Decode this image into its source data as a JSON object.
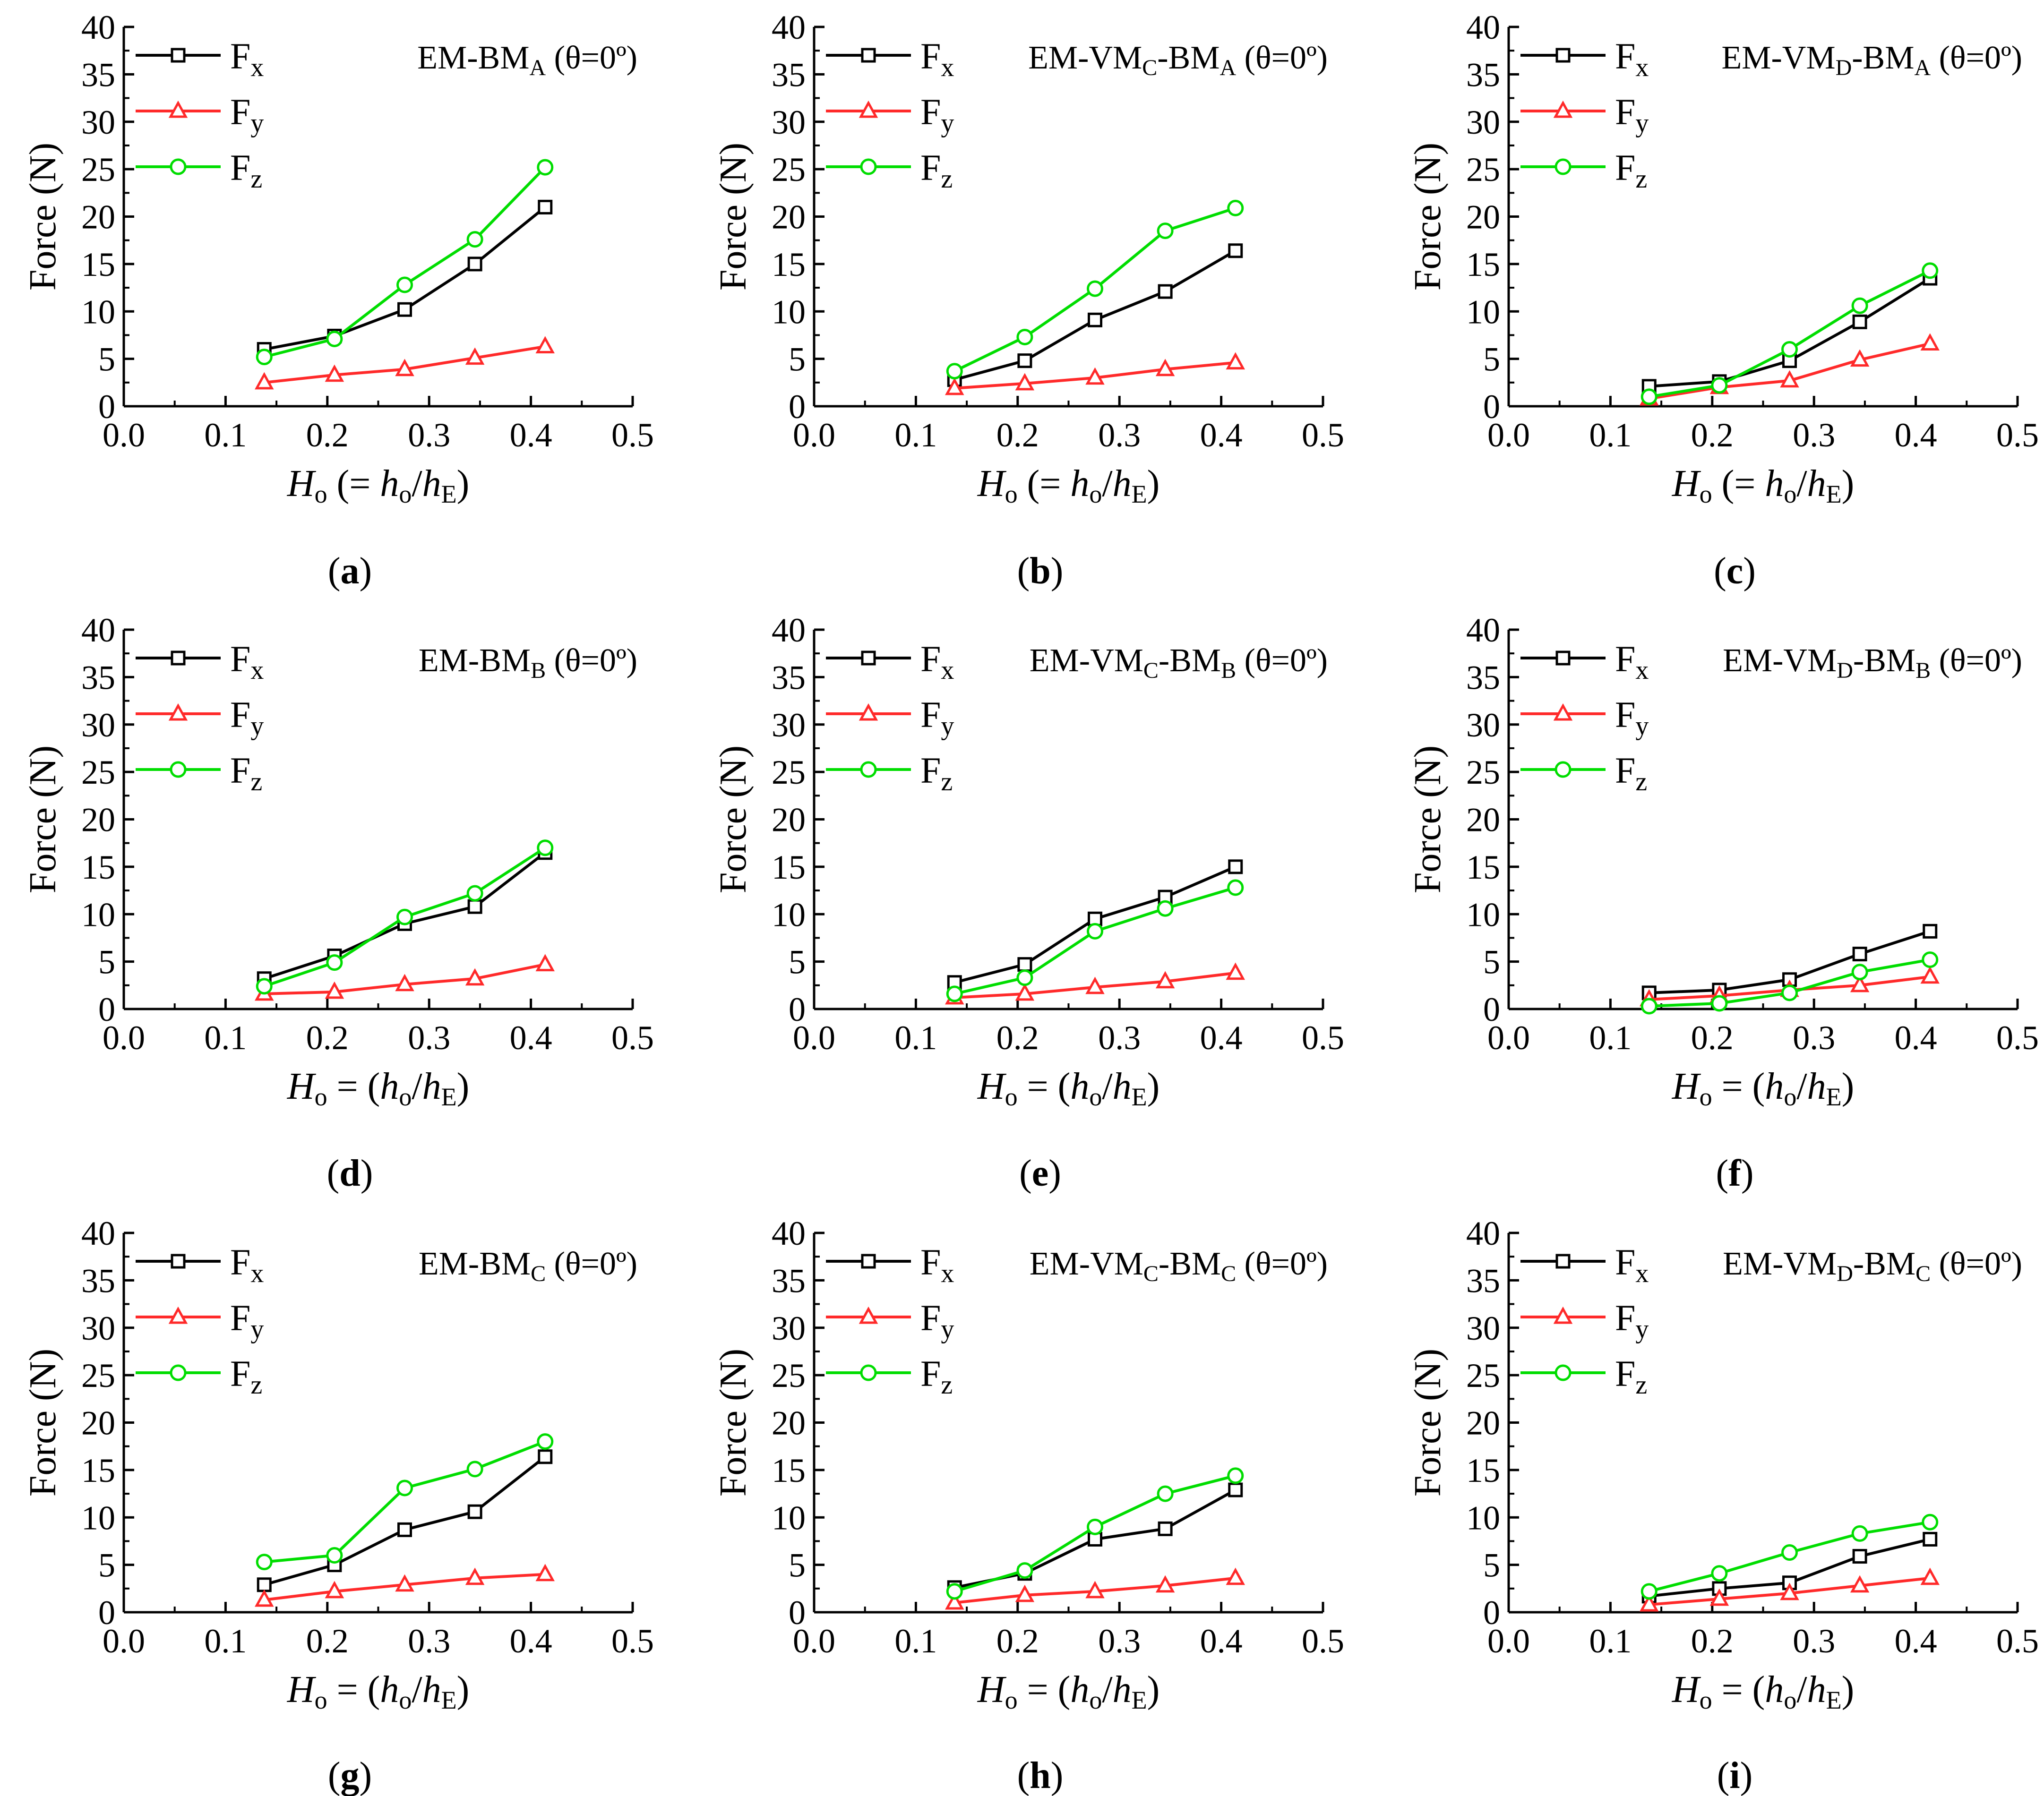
{
  "figure": {
    "panels": [
      {
        "id": "a",
        "caption_letter": "a",
        "title_main": "EM-BM",
        "title_sub": "A",
        "title_tail": " (θ=0º)",
        "x_label_parts": [
          "H",
          "o",
          " (= ",
          "h",
          "o",
          "/",
          "h",
          "E",
          ")"
        ]
      },
      {
        "id": "b",
        "caption_letter": "b",
        "title_main": "EM-VM",
        "title_sub": "C",
        "title_mid": "-BM",
        "title_sub2": "A",
        "title_tail": " (θ=0º)",
        "x_label_parts": [
          "H",
          "o",
          " (= ",
          "h",
          "o",
          "/",
          "h",
          "E",
          ")"
        ]
      },
      {
        "id": "c",
        "caption_letter": "c",
        "title_main": "EM-VM",
        "title_sub": "D",
        "title_mid": "-BM",
        "title_sub2": "A",
        "title_tail": " (θ=0º)",
        "x_label_parts": [
          "H",
          "o",
          " (= ",
          "h",
          "o",
          "/",
          "h",
          "E",
          ")"
        ]
      },
      {
        "id": "d",
        "caption_letter": "d",
        "title_main": "EM-BM",
        "title_sub": "B",
        "title_tail": " (θ=0º)",
        "x_label_parts": [
          "H",
          "o",
          " = (",
          "h",
          "o",
          "/",
          "h",
          "E",
          ")"
        ]
      },
      {
        "id": "e",
        "caption_letter": "e",
        "title_main": "EM-VM",
        "title_sub": "C",
        "title_mid": "-BM",
        "title_sub2": "B",
        "title_tail": " (θ=0º)",
        "x_label_parts": [
          "H",
          "o",
          " = (",
          "h",
          "o",
          "/",
          "h",
          "E",
          ")"
        ]
      },
      {
        "id": "f",
        "caption_letter": "f",
        "title_main": "EM-VM",
        "title_sub": "D",
        "title_mid": "-BM",
        "title_sub2": "B",
        "title_tail": " (θ=0º)",
        "x_label_parts": [
          "H",
          "o",
          " = (",
          "h",
          "o",
          "/",
          "h",
          "E",
          ")"
        ]
      },
      {
        "id": "g",
        "caption_letter": "g",
        "title_main": "EM-BM",
        "title_sub": "C",
        "title_tail": " (θ=0º)",
        "x_label_parts": [
          "H",
          "o",
          " = (",
          "h",
          "o",
          "/",
          "h",
          "E",
          ")"
        ]
      },
      {
        "id": "h",
        "caption_letter": "h",
        "title_main": "EM-VM",
        "title_sub": "C",
        "title_mid": "-BM",
        "title_sub2": "C",
        "title_tail": " (θ=0º)",
        "x_label_parts": [
          "H",
          "o",
          " = (",
          "h",
          "o",
          "/",
          "h",
          "E",
          ")"
        ]
      },
      {
        "id": "i",
        "caption_letter": "i",
        "title_main": "EM-VM",
        "title_sub": "D",
        "title_mid": "-BM",
        "title_sub2": "C",
        "title_tail": " (θ=0º)",
        "x_label_parts": [
          "H",
          "o",
          " = (",
          "h",
          "o",
          "/",
          "h",
          "E",
          ")"
        ]
      }
    ],
    "colors": {
      "Fx": "#000000",
      "Fy": "#ff2a2a",
      "Fz": "#00dd00"
    }
  },
  "chart_data": [
    {
      "type": "line",
      "panel": "a",
      "ylabel": "Force (N)",
      "xlim": [
        0,
        0.5
      ],
      "ylim": [
        0,
        40
      ],
      "xticks": [
        "0.0",
        "0.1",
        "0.2",
        "0.3",
        "0.4",
        "0.5"
      ],
      "yticks": [
        "0",
        "5",
        "10",
        "15",
        "20",
        "25",
        "30",
        "35",
        "40"
      ],
      "x": [
        0.138,
        0.207,
        0.276,
        0.345,
        0.414
      ],
      "series": [
        {
          "name": "Fx",
          "legend_main": "F",
          "legend_sub": "x",
          "marker": "square",
          "values": [
            6.0,
            7.4,
            10.2,
            15.0,
            21.0
          ]
        },
        {
          "name": "Fy",
          "legend_main": "F",
          "legend_sub": "y",
          "marker": "triangle",
          "values": [
            2.5,
            3.3,
            3.9,
            5.1,
            6.3
          ]
        },
        {
          "name": "Fz",
          "legend_main": "F",
          "legend_sub": "z",
          "marker": "circle",
          "values": [
            5.2,
            7.1,
            12.8,
            17.6,
            25.2
          ]
        }
      ]
    },
    {
      "type": "line",
      "panel": "b",
      "ylabel": "Force (N)",
      "xlim": [
        0,
        0.5
      ],
      "ylim": [
        0,
        40
      ],
      "xticks": [
        "0.0",
        "0.1",
        "0.2",
        "0.3",
        "0.4",
        "0.5"
      ],
      "yticks": [
        "0",
        "5",
        "10",
        "15",
        "20",
        "25",
        "30",
        "35",
        "40"
      ],
      "x": [
        0.138,
        0.207,
        0.276,
        0.345,
        0.414
      ],
      "series": [
        {
          "name": "Fx",
          "legend_main": "F",
          "legend_sub": "x",
          "marker": "square",
          "values": [
            2.8,
            4.8,
            9.1,
            12.1,
            16.4
          ]
        },
        {
          "name": "Fy",
          "legend_main": "F",
          "legend_sub": "y",
          "marker": "triangle",
          "values": [
            1.9,
            2.4,
            3.0,
            3.9,
            4.6
          ]
        },
        {
          "name": "Fz",
          "legend_main": "F",
          "legend_sub": "z",
          "marker": "circle",
          "values": [
            3.7,
            7.3,
            12.4,
            18.5,
            20.9
          ]
        }
      ]
    },
    {
      "type": "line",
      "panel": "c",
      "ylabel": "Force (N)",
      "xlim": [
        0,
        0.5
      ],
      "ylim": [
        0,
        40
      ],
      "xticks": [
        "0.0",
        "0.1",
        "0.2",
        "0.3",
        "0.4",
        "0.5"
      ],
      "yticks": [
        "0",
        "5",
        "10",
        "15",
        "20",
        "25",
        "30",
        "35",
        "40"
      ],
      "x": [
        0.138,
        0.207,
        0.276,
        0.345,
        0.414
      ],
      "series": [
        {
          "name": "Fx",
          "legend_main": "F",
          "legend_sub": "x",
          "marker": "square",
          "values": [
            2.1,
            2.6,
            4.8,
            8.9,
            13.5
          ]
        },
        {
          "name": "Fy",
          "legend_main": "F",
          "legend_sub": "y",
          "marker": "triangle",
          "values": [
            0.8,
            2.0,
            2.7,
            4.9,
            6.6
          ]
        },
        {
          "name": "Fz",
          "legend_main": "F",
          "legend_sub": "z",
          "marker": "circle",
          "values": [
            1.0,
            2.2,
            6.0,
            10.6,
            14.3
          ]
        }
      ]
    },
    {
      "type": "line",
      "panel": "d",
      "ylabel": "Force (N)",
      "xlim": [
        0,
        0.5
      ],
      "ylim": [
        0,
        40
      ],
      "xticks": [
        "0.0",
        "0.1",
        "0.2",
        "0.3",
        "0.4",
        "0.5"
      ],
      "yticks": [
        "0",
        "5",
        "10",
        "15",
        "20",
        "25",
        "30",
        "35",
        "40"
      ],
      "x": [
        0.138,
        0.207,
        0.276,
        0.345,
        0.414
      ],
      "series": [
        {
          "name": "Fx",
          "legend_main": "F",
          "legend_sub": "x",
          "marker": "square",
          "values": [
            3.2,
            5.6,
            9.0,
            10.8,
            16.5
          ]
        },
        {
          "name": "Fy",
          "legend_main": "F",
          "legend_sub": "y",
          "marker": "triangle",
          "values": [
            1.6,
            1.8,
            2.6,
            3.2,
            4.7
          ]
        },
        {
          "name": "Fz",
          "legend_main": "F",
          "legend_sub": "z",
          "marker": "circle",
          "values": [
            2.4,
            4.9,
            9.7,
            12.2,
            17.0
          ]
        }
      ]
    },
    {
      "type": "line",
      "panel": "e",
      "ylabel": "Force (N)",
      "xlim": [
        0,
        0.5
      ],
      "ylim": [
        0,
        40
      ],
      "xticks": [
        "0.0",
        "0.1",
        "0.2",
        "0.3",
        "0.4",
        "0.5"
      ],
      "yticks": [
        "0",
        "5",
        "10",
        "15",
        "20",
        "25",
        "30",
        "35",
        "40"
      ],
      "x": [
        0.138,
        0.207,
        0.276,
        0.345,
        0.414
      ],
      "series": [
        {
          "name": "Fx",
          "legend_main": "F",
          "legend_sub": "x",
          "marker": "square",
          "values": [
            2.8,
            4.7,
            9.5,
            11.8,
            15.0
          ]
        },
        {
          "name": "Fy",
          "legend_main": "F",
          "legend_sub": "y",
          "marker": "triangle",
          "values": [
            1.2,
            1.6,
            2.3,
            2.9,
            3.8
          ]
        },
        {
          "name": "Fz",
          "legend_main": "F",
          "legend_sub": "z",
          "marker": "circle",
          "values": [
            1.6,
            3.3,
            8.2,
            10.6,
            12.8
          ]
        }
      ]
    },
    {
      "type": "line",
      "panel": "f",
      "ylabel": "Force (N)",
      "xlim": [
        0,
        0.5
      ],
      "ylim": [
        0,
        40
      ],
      "xticks": [
        "0.0",
        "0.1",
        "0.2",
        "0.3",
        "0.4",
        "0.5"
      ],
      "yticks": [
        "0",
        "5",
        "10",
        "15",
        "20",
        "25",
        "30",
        "35",
        "40"
      ],
      "x": [
        0.138,
        0.207,
        0.276,
        0.345,
        0.414
      ],
      "series": [
        {
          "name": "Fx",
          "legend_main": "F",
          "legend_sub": "x",
          "marker": "square",
          "values": [
            1.7,
            2.0,
            3.1,
            5.8,
            8.2
          ]
        },
        {
          "name": "Fy",
          "legend_main": "F",
          "legend_sub": "y",
          "marker": "triangle",
          "values": [
            1.0,
            1.4,
            2.0,
            2.5,
            3.4
          ]
        },
        {
          "name": "Fz",
          "legend_main": "F",
          "legend_sub": "z",
          "marker": "circle",
          "values": [
            0.3,
            0.6,
            1.7,
            3.9,
            5.2
          ]
        }
      ]
    },
    {
      "type": "line",
      "panel": "g",
      "ylabel": "Force (N)",
      "xlim": [
        0,
        0.5
      ],
      "ylim": [
        0,
        40
      ],
      "xticks": [
        "0.0",
        "0.1",
        "0.2",
        "0.3",
        "0.4",
        "0.5"
      ],
      "yticks": [
        "0",
        "5",
        "10",
        "15",
        "20",
        "25",
        "30",
        "35",
        "40"
      ],
      "x": [
        0.138,
        0.207,
        0.276,
        0.345,
        0.414
      ],
      "series": [
        {
          "name": "Fx",
          "legend_main": "F",
          "legend_sub": "x",
          "marker": "square",
          "values": [
            2.9,
            5.0,
            8.7,
            10.6,
            16.4
          ]
        },
        {
          "name": "Fy",
          "legend_main": "F",
          "legend_sub": "y",
          "marker": "triangle",
          "values": [
            1.3,
            2.2,
            2.9,
            3.6,
            4.0
          ]
        },
        {
          "name": "Fz",
          "legend_main": "F",
          "legend_sub": "z",
          "marker": "circle",
          "values": [
            5.3,
            6.0,
            13.1,
            15.1,
            18.0
          ]
        }
      ]
    },
    {
      "type": "line",
      "panel": "h",
      "ylabel": "Force (N)",
      "xlim": [
        0,
        0.5
      ],
      "ylim": [
        0,
        40
      ],
      "xticks": [
        "0.0",
        "0.1",
        "0.2",
        "0.3",
        "0.4",
        "0.5"
      ],
      "yticks": [
        "0",
        "5",
        "10",
        "15",
        "20",
        "25",
        "30",
        "35",
        "40"
      ],
      "x": [
        0.138,
        0.207,
        0.276,
        0.345,
        0.414
      ],
      "series": [
        {
          "name": "Fx",
          "legend_main": "F",
          "legend_sub": "x",
          "marker": "square",
          "values": [
            2.6,
            4.1,
            7.7,
            8.8,
            12.9
          ]
        },
        {
          "name": "Fy",
          "legend_main": "F",
          "legend_sub": "y",
          "marker": "triangle",
          "values": [
            1.0,
            1.8,
            2.2,
            2.8,
            3.6
          ]
        },
        {
          "name": "Fz",
          "legend_main": "F",
          "legend_sub": "z",
          "marker": "circle",
          "values": [
            2.2,
            4.4,
            9.0,
            12.5,
            14.4
          ]
        }
      ]
    },
    {
      "type": "line",
      "panel": "i",
      "ylabel": "Force (N)",
      "xlim": [
        0,
        0.5
      ],
      "ylim": [
        0,
        40
      ],
      "xticks": [
        "0.0",
        "0.1",
        "0.2",
        "0.3",
        "0.4",
        "0.5"
      ],
      "yticks": [
        "0",
        "5",
        "10",
        "15",
        "20",
        "25",
        "30",
        "35",
        "40"
      ],
      "x": [
        0.138,
        0.207,
        0.276,
        0.345,
        0.414
      ],
      "series": [
        {
          "name": "Fx",
          "legend_main": "F",
          "legend_sub": "x",
          "marker": "square",
          "values": [
            1.7,
            2.5,
            3.1,
            5.9,
            7.7
          ]
        },
        {
          "name": "Fy",
          "legend_main": "F",
          "legend_sub": "y",
          "marker": "triangle",
          "values": [
            0.8,
            1.4,
            2.0,
            2.8,
            3.6
          ]
        },
        {
          "name": "Fz",
          "legend_main": "F",
          "legend_sub": "z",
          "marker": "circle",
          "values": [
            2.2,
            4.1,
            6.3,
            8.3,
            9.5
          ]
        }
      ]
    }
  ]
}
